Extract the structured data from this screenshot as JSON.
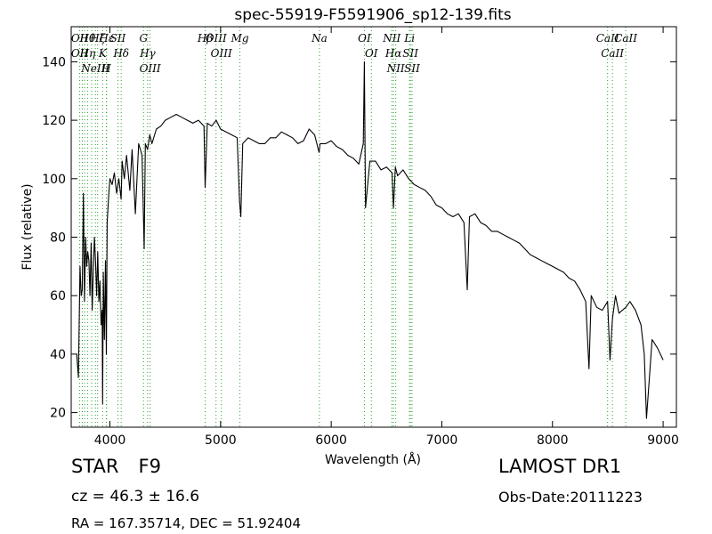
{
  "chart_data": {
    "type": "line",
    "title": "spec-55919-F5591906_sp12-139.fits",
    "xlabel": "Wavelength (Å)",
    "ylabel": "Flux (relative)",
    "xlim": [
      3650,
      9120
    ],
    "ylim": [
      15,
      152
    ],
    "xticks": [
      4000,
      5000,
      6000,
      7000,
      8000,
      9000
    ],
    "yticks": [
      20,
      40,
      60,
      80,
      100,
      120,
      140
    ],
    "grid": false,
    "line_color": "#000000",
    "marker_color": "#2ca02c",
    "series": [
      {
        "x": [
          3700,
          3715,
          3730,
          3740,
          3750,
          3760,
          3770,
          3780,
          3790,
          3800,
          3810,
          3820,
          3830,
          3840,
          3850,
          3860,
          3870,
          3880,
          3890,
          3900,
          3910,
          3920,
          3930,
          3934,
          3940,
          3950,
          3960,
          3968,
          3975,
          3990,
          4000,
          4020,
          4040,
          4060,
          4080,
          4101,
          4110,
          4130,
          4150,
          4180,
          4200,
          4230,
          4260,
          4290,
          4310,
          4320,
          4340,
          4360,
          4380,
          4420,
          4460,
          4500,
          4550,
          4600,
          4650,
          4700,
          4750,
          4800,
          4850,
          4861,
          4880,
          4920,
          4960,
          5000,
          5050,
          5100,
          5150,
          5172,
          5183,
          5200,
          5250,
          5300,
          5350,
          5400,
          5450,
          5500,
          5550,
          5600,
          5650,
          5700,
          5750,
          5800,
          5850,
          5890,
          5900,
          5950,
          6000,
          6050,
          6100,
          6150,
          6200,
          6250,
          6290,
          6300,
          6310,
          6350,
          6400,
          6450,
          6500,
          6550,
          6563,
          6580,
          6600,
          6650,
          6700,
          6750,
          6800,
          6850,
          6900,
          6950,
          7000,
          7050,
          7100,
          7150,
          7200,
          7230,
          7250,
          7300,
          7350,
          7400,
          7450,
          7500,
          7550,
          7600,
          7650,
          7700,
          7750,
          7800,
          7850,
          7900,
          7950,
          8000,
          8050,
          8100,
          8150,
          8200,
          8250,
          8300,
          8330,
          8350,
          8400,
          8450,
          8498,
          8520,
          8542,
          8570,
          8600,
          8662,
          8700,
          8750,
          8800,
          8830,
          8850,
          8900,
          8950,
          9000
        ],
        "y": [
          40,
          32,
          70,
          60,
          62,
          95,
          58,
          80,
          70,
          75,
          72,
          60,
          78,
          55,
          70,
          80,
          72,
          60,
          75,
          58,
          65,
          50,
          55,
          23,
          68,
          45,
          72,
          40,
          85,
          95,
          100,
          98,
          102,
          95,
          100,
          93,
          106,
          100,
          108,
          96,
          110,
          88,
          112,
          108,
          76,
          112,
          110,
          115,
          112,
          117,
          118,
          120,
          121,
          122,
          121,
          120,
          119,
          120,
          118,
          97,
          119,
          118,
          120,
          117,
          116,
          115,
          114,
          92,
          87,
          112,
          114,
          113,
          112,
          112,
          114,
          114,
          116,
          115,
          114,
          112,
          113,
          117,
          115,
          109,
          112,
          112,
          113,
          111,
          110,
          108,
          107,
          105,
          112,
          140,
          90,
          106,
          106,
          103,
          104,
          102,
          90,
          104,
          101,
          103,
          100,
          98,
          97,
          96,
          94,
          91,
          90,
          88,
          87,
          88,
          85,
          62,
          87,
          88,
          85,
          84,
          82,
          82,
          81,
          80,
          79,
          78,
          76,
          74,
          73,
          72,
          71,
          70,
          69,
          68,
          66,
          65,
          62,
          58,
          35,
          60,
          56,
          55,
          58,
          38,
          52,
          60,
          54,
          56,
          58,
          55,
          50,
          40,
          18,
          45,
          42,
          38
        ]
      }
    ],
    "line_markers": [
      {
        "wavelength": 3727,
        "labels": [
          "OII",
          "OII"
        ]
      },
      {
        "wavelength": 3750,
        "labels": []
      },
      {
        "wavelength": 3771,
        "labels": []
      },
      {
        "wavelength": 3798,
        "labels": [
          "Hθ",
          "Hη"
        ]
      },
      {
        "wavelength": 3835,
        "labels": []
      },
      {
        "wavelength": 3869,
        "labels": [
          "NeIII"
        ]
      },
      {
        "wavelength": 3889,
        "labels": [
          "Hζ"
        ]
      },
      {
        "wavelength": 3934,
        "labels": [
          "K"
        ]
      },
      {
        "wavelength": 3968,
        "labels": [
          "H"
        ]
      },
      {
        "wavelength": 3970,
        "labels": [
          "Hε"
        ]
      },
      {
        "wavelength": 4072,
        "labels": [
          "SII"
        ]
      },
      {
        "wavelength": 4102,
        "labels": [
          "Hδ"
        ]
      },
      {
        "wavelength": 4304,
        "labels": [
          "G"
        ]
      },
      {
        "wavelength": 4341,
        "labels": [
          "Hγ"
        ]
      },
      {
        "wavelength": 4363,
        "labels": [
          "OIII"
        ]
      },
      {
        "wavelength": 4861,
        "labels": [
          "Hβ"
        ]
      },
      {
        "wavelength": 4959,
        "labels": [
          "OIII"
        ]
      },
      {
        "wavelength": 5007,
        "labels": [
          "OIII"
        ]
      },
      {
        "wavelength": 5175,
        "labels": [
          "Mg"
        ]
      },
      {
        "wavelength": 5894,
        "labels": [
          "Na"
        ]
      },
      {
        "wavelength": 6300,
        "labels": [
          "OI"
        ]
      },
      {
        "wavelength": 6363,
        "labels": [
          "OI"
        ]
      },
      {
        "wavelength": 6548,
        "labels": [
          "NII"
        ]
      },
      {
        "wavelength": 6563,
        "labels": [
          "Hα"
        ]
      },
      {
        "wavelength": 6583,
        "labels": [
          "NII"
        ]
      },
      {
        "wavelength": 6708,
        "labels": [
          "Li"
        ]
      },
      {
        "wavelength": 6716,
        "labels": [
          "SII"
        ]
      },
      {
        "wavelength": 6731,
        "labels": [
          "SII"
        ]
      },
      {
        "wavelength": 8498,
        "labels": [
          "CaII"
        ]
      },
      {
        "wavelength": 8542,
        "labels": [
          "CaII"
        ]
      },
      {
        "wavelength": 8662,
        "labels": [
          "CaII"
        ]
      }
    ]
  },
  "info": {
    "class_label": "STAR",
    "subclass": "F9",
    "survey": "LAMOST DR1",
    "cz_text": "cz = 46.3  ± 16.6",
    "obs_date": "Obs-Date:20111223",
    "radec": "RA = 167.35714, DEC = 51.92404"
  }
}
